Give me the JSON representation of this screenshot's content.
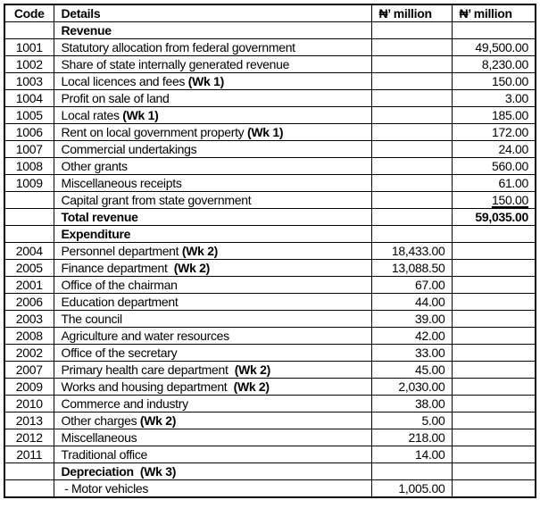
{
  "currency_symbol": "₦",
  "table": {
    "headers": [
      "Code",
      "Details",
      "₦’ million",
      "₦’ million"
    ],
    "sections": [
      "Revenue",
      "Expenditure"
    ],
    "rows": [
      {
        "code": "",
        "details": "Revenue",
        "details_bold_all": true,
        "amount1": "",
        "amount2": ""
      },
      {
        "code": "1001",
        "details": "Statutory allocation from federal government",
        "amount1": "",
        "amount2": "49,500.00"
      },
      {
        "code": "1002",
        "details": "Share of state internally generated revenue",
        "amount1": "",
        "amount2": "8,230.00"
      },
      {
        "code": "1003",
        "details": "Local licences and fees ",
        "details_bold": "(Wk 1)",
        "amount1": "",
        "amount2": "150.00"
      },
      {
        "code": "1004",
        "details": "Profit on sale of land",
        "amount1": "",
        "amount2": "3.00"
      },
      {
        "code": "1005",
        "details": "Local rates ",
        "details_bold": "(Wk 1)",
        "amount1": "",
        "amount2": "185.00"
      },
      {
        "code": "1006",
        "details": "Rent on local government property ",
        "details_bold": "(Wk 1)",
        "amount1": "",
        "amount2": "172.00"
      },
      {
        "code": "1007",
        "details": "Commercial undertakings",
        "amount1": "",
        "amount2": "24.00"
      },
      {
        "code": "1008",
        "details": "Other grants",
        "amount1": "",
        "amount2": "560.00"
      },
      {
        "code": "1009",
        "details": "Miscellaneous receipts",
        "amount1": "",
        "amount2": "61.00"
      },
      {
        "code": "",
        "details": "Capital grant from state government",
        "amount1": "",
        "amount2": "150.00",
        "underline2": true
      },
      {
        "code": "",
        "details": "Total revenue",
        "details_bold_all": true,
        "amount1": "",
        "amount2": "59,035.00",
        "amount2_bold": true
      },
      {
        "code": "",
        "details": "Expenditure",
        "details_bold_all": true,
        "amount1": "",
        "amount2": ""
      },
      {
        "code": "2004",
        "details": "Personnel department ",
        "details_bold": "(Wk 2)",
        "amount1": "18,433.00",
        "amount2": ""
      },
      {
        "code": "2005",
        "details": "Finance department  ",
        "details_bold": "(Wk 2)",
        "amount1": "13,088.50",
        "amount2": ""
      },
      {
        "code": "2001",
        "details": "Office of the chairman",
        "amount1": "67.00",
        "amount2": ""
      },
      {
        "code": "2006",
        "details": "Education department",
        "amount1": "44.00",
        "amount2": ""
      },
      {
        "code": "2003",
        "details": "The council",
        "amount1": "39.00",
        "amount2": ""
      },
      {
        "code": "2008",
        "details": "Agriculture and water resources",
        "amount1": "42.00",
        "amount2": ""
      },
      {
        "code": "2002",
        "details": "Office of the secretary",
        "amount1": "33.00",
        "amount2": ""
      },
      {
        "code": "2007",
        "details": "Primary health care department  ",
        "details_bold": "(Wk 2)",
        "amount1": "45.00",
        "amount2": ""
      },
      {
        "code": "2009",
        "details": "Works and housing department  ",
        "details_bold": "(Wk 2)",
        "amount1": "2,030.00",
        "amount2": ""
      },
      {
        "code": "2010",
        "details": "Commerce and industry",
        "amount1": "38.00",
        "amount2": ""
      },
      {
        "code": "2013",
        "details": "Other charges ",
        "details_bold": "(Wk 2)",
        "amount1": "5.00",
        "amount2": ""
      },
      {
        "code": "2012",
        "details": "Miscellaneous",
        "amount1": "218.00",
        "amount2": ""
      },
      {
        "code": "2011",
        "details": "Traditional office",
        "amount1": "14.00",
        "amount2": ""
      },
      {
        "code": "",
        "details": "Depreciation  (Wk 3)",
        "details_bold_all": true,
        "amount1": "",
        "amount2": ""
      },
      {
        "code": "",
        "details": " - Motor vehicles",
        "amount1": "1,005.00",
        "amount2": ""
      }
    ]
  }
}
